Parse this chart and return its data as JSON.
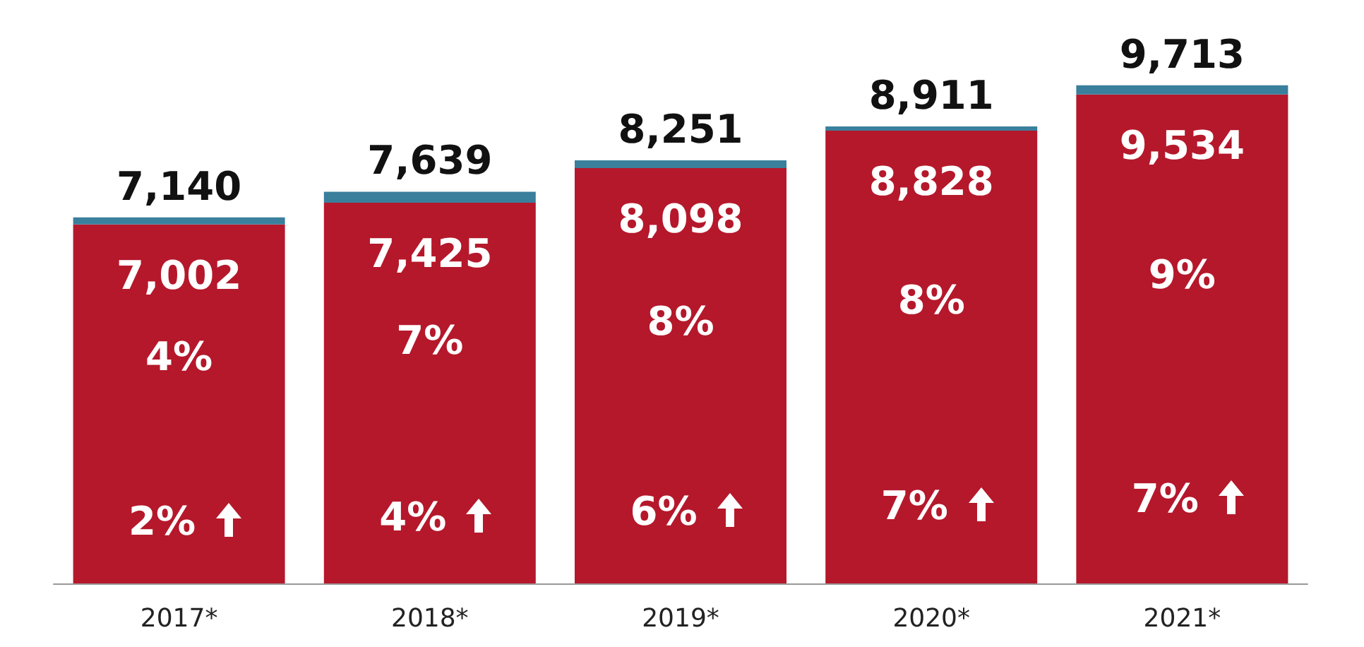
{
  "chart_data": {
    "type": "bar",
    "stacked": true,
    "categories": [
      "2017*",
      "2018*",
      "2019*",
      "2020*",
      "2021*"
    ],
    "series": [
      {
        "color": "#b5182b",
        "values": [
          7002,
          7425,
          8098,
          8828,
          9534
        ],
        "value_labels": [
          "7,002",
          "7,425",
          "8,098",
          "8,828",
          "9,534"
        ]
      },
      {
        "color": "#3a7f9c",
        "values": [
          138,
          214,
          153,
          83,
          179
        ]
      }
    ],
    "totals": [
      "7,140",
      "7,639",
      "8,251",
      "8,911",
      "9,713"
    ],
    "annotations": [
      "4%",
      "7%",
      "8%",
      "8%",
      "9%",
      "2%",
      "4%",
      "6%",
      "7%",
      "7%"
    ]
  }
}
